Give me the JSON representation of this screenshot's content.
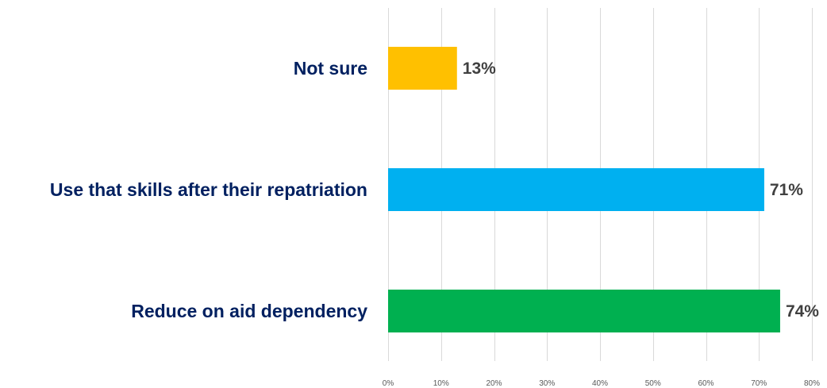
{
  "chart_data": {
    "type": "bar",
    "orientation": "horizontal",
    "categories": [
      "Not sure",
      "Use that skills after their repatriation",
      "Reduce on aid dependency"
    ],
    "values": [
      13,
      71,
      74
    ],
    "value_labels": [
      "13%",
      "71%",
      "74%"
    ],
    "bar_colors": [
      "#FFC000",
      "#00B0F0",
      "#00B050"
    ],
    "xlim": [
      0,
      80
    ],
    "x_ticks": [
      0,
      10,
      20,
      30,
      40,
      50,
      60,
      70,
      80
    ],
    "x_tick_labels": [
      "0%",
      "10%",
      "20%",
      "30%",
      "40%",
      "50%",
      "60%",
      "70%",
      "80%"
    ],
    "grid": true,
    "legend": "none",
    "title": "",
    "xlabel": "",
    "ylabel": ""
  },
  "colors": {
    "category_label": "#002060",
    "value_label": "#404040",
    "tick_label": "#595959",
    "gridline": "#D9D9D9"
  }
}
